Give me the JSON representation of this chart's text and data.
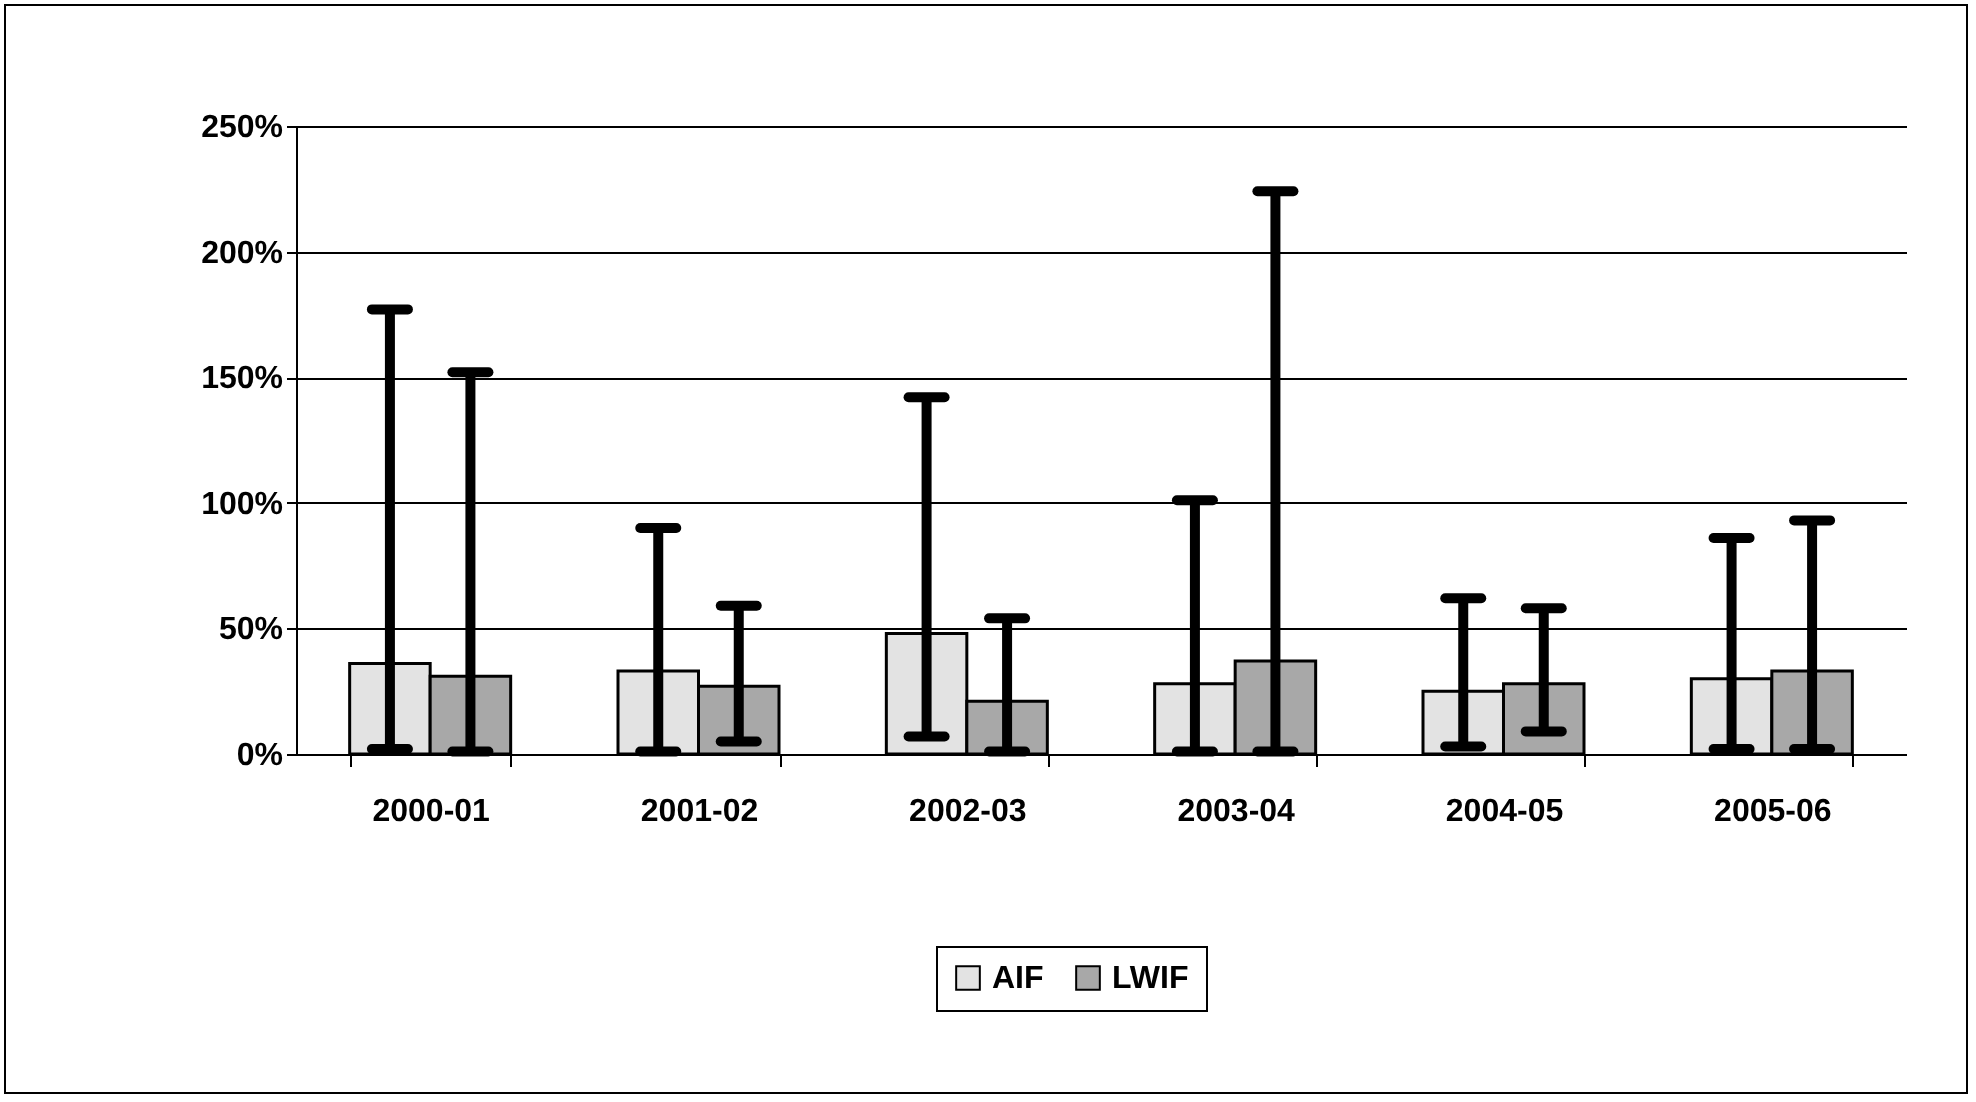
{
  "chart_data": {
    "type": "bar",
    "categories": [
      "2000-01",
      "2001-02",
      "2002-03",
      "2003-04",
      "2004-05",
      "2005-06"
    ],
    "series": [
      {
        "name": "AIF",
        "color": "#e3e3e3",
        "values": [
          36,
          33,
          48,
          28,
          25,
          30
        ],
        "errors": [
          [
            2,
            177
          ],
          [
            1,
            90
          ],
          [
            7,
            142
          ],
          [
            1,
            101
          ],
          [
            3,
            62
          ],
          [
            2,
            86
          ]
        ]
      },
      {
        "name": "LWIF",
        "color": "#a8a8a8",
        "values": [
          31,
          27,
          21,
          37,
          28,
          33
        ],
        "errors": [
          [
            1,
            152
          ],
          [
            5,
            59
          ],
          [
            1,
            54
          ],
          [
            1,
            224
          ],
          [
            9,
            58
          ],
          [
            2,
            93
          ]
        ]
      }
    ],
    "ylim": [
      0,
      250
    ],
    "yticks": [
      {
        "value": 0,
        "label": "0%"
      },
      {
        "value": 50,
        "label": "50%"
      },
      {
        "value": 100,
        "label": "100%"
      },
      {
        "value": 150,
        "label": "150%"
      },
      {
        "value": 200,
        "label": "200%"
      },
      {
        "value": 250,
        "label": "250%"
      }
    ],
    "grid": "y",
    "legend": "bottom"
  }
}
